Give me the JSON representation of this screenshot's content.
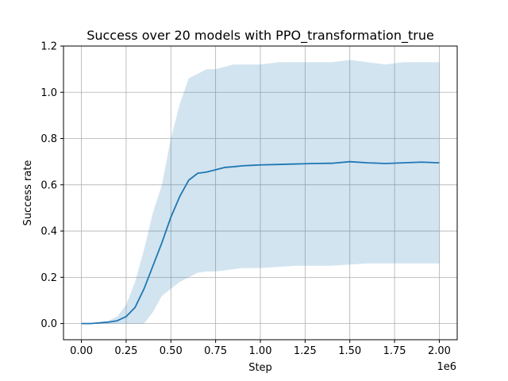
{
  "chart_data": {
    "type": "line",
    "title": "Success over 20 models with PPO_transformation_true",
    "xlabel": "Step",
    "ylabel": "Success rate",
    "x_offset_text": "1e6",
    "xlim": [
      -0.1,
      2.1
    ],
    "ylim": [
      -0.07,
      1.2
    ],
    "x_ticks": [
      0.0,
      0.25,
      0.5,
      0.75,
      1.0,
      1.25,
      1.5,
      1.75,
      2.0
    ],
    "x_tick_labels": [
      "0.00",
      "0.25",
      "0.50",
      "0.75",
      "1.00",
      "1.25",
      "1.50",
      "1.75",
      "2.00"
    ],
    "y_ticks": [
      0.0,
      0.2,
      0.4,
      0.6,
      0.8,
      1.0,
      1.2
    ],
    "y_tick_labels": [
      "0.0",
      "0.2",
      "0.4",
      "0.6",
      "0.8",
      "1.0",
      "1.2"
    ],
    "grid": true,
    "series": [
      {
        "kind": "mean",
        "color": "#1f77b4",
        "x": [
          0.0,
          0.05,
          0.1,
          0.15,
          0.2,
          0.25,
          0.3,
          0.35,
          0.4,
          0.45,
          0.5,
          0.55,
          0.6,
          0.65,
          0.7,
          0.75,
          0.8,
          0.85,
          0.9,
          0.95,
          1.0,
          1.1,
          1.2,
          1.3,
          1.4,
          1.5,
          1.6,
          1.7,
          1.8,
          1.9,
          2.0
        ],
        "values": [
          0.0,
          0.0,
          0.003,
          0.006,
          0.012,
          0.03,
          0.07,
          0.15,
          0.25,
          0.35,
          0.46,
          0.55,
          0.62,
          0.65,
          0.655,
          0.665,
          0.675,
          0.678,
          0.682,
          0.684,
          0.686,
          0.688,
          0.69,
          0.692,
          0.693,
          0.7,
          0.695,
          0.692,
          0.695,
          0.698,
          0.695
        ]
      },
      {
        "kind": "band",
        "color": "#1f77b4",
        "opacity": 0.2,
        "x": [
          0.0,
          0.05,
          0.1,
          0.15,
          0.2,
          0.25,
          0.3,
          0.35,
          0.4,
          0.45,
          0.5,
          0.55,
          0.6,
          0.65,
          0.7,
          0.75,
          0.8,
          0.85,
          0.9,
          0.95,
          1.0,
          1.1,
          1.2,
          1.3,
          1.4,
          1.5,
          1.6,
          1.7,
          1.8,
          1.9,
          2.0
        ],
        "upper": [
          0.0,
          0.001,
          0.006,
          0.012,
          0.03,
          0.08,
          0.18,
          0.32,
          0.48,
          0.6,
          0.8,
          0.95,
          1.06,
          1.08,
          1.1,
          1.1,
          1.11,
          1.12,
          1.12,
          1.12,
          1.12,
          1.13,
          1.13,
          1.13,
          1.13,
          1.14,
          1.13,
          1.12,
          1.13,
          1.13,
          1.13
        ],
        "lower": [
          0.0,
          0.0,
          0.0,
          0.0,
          0.0,
          0.0,
          0.0,
          0.0,
          0.05,
          0.12,
          0.15,
          0.18,
          0.2,
          0.22,
          0.225,
          0.225,
          0.23,
          0.235,
          0.24,
          0.24,
          0.24,
          0.245,
          0.25,
          0.25,
          0.25,
          0.255,
          0.26,
          0.26,
          0.26,
          0.26,
          0.26
        ]
      }
    ]
  }
}
